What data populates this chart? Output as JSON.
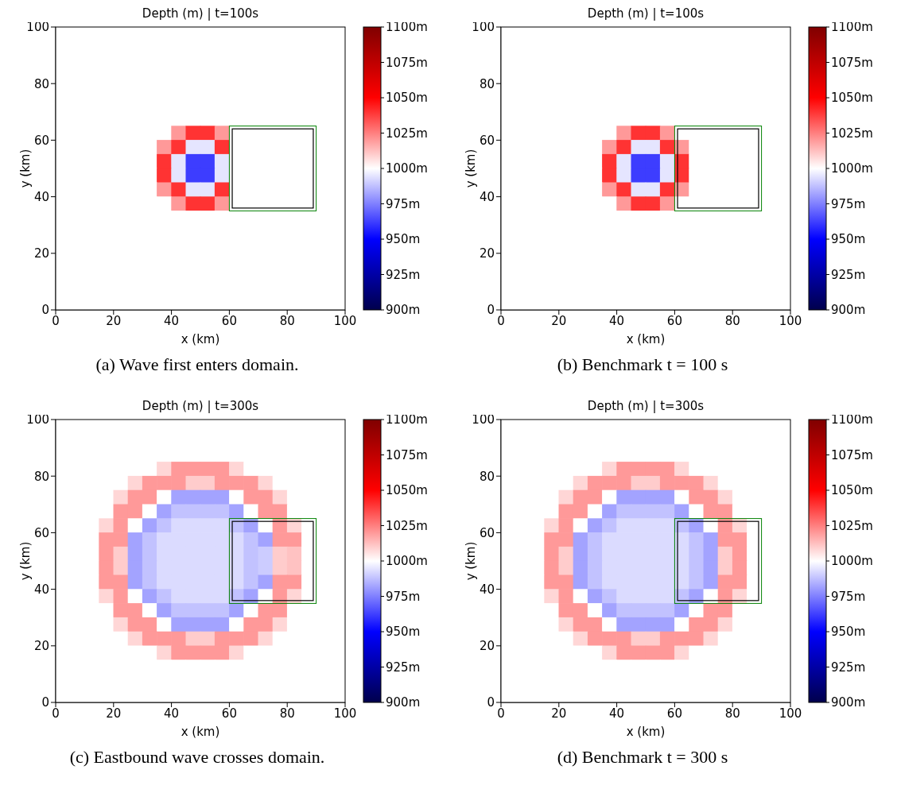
{
  "chart_data": [
    {
      "type": "heatmap",
      "title": "Depth (m) | t=100s",
      "xlabel": "x (km)",
      "ylabel": "y (km)",
      "annotations": [
        "(a) Wave first enters domain."
      ],
      "xlim": [
        0,
        100
      ],
      "ylim": [
        0,
        100
      ],
      "xticks": [
        0,
        20,
        40,
        60,
        80,
        100
      ],
      "yticks": [
        0,
        20,
        40,
        60,
        80,
        100
      ],
      "clim": [
        900,
        1100
      ],
      "cticks": [
        {
          "value": 900,
          "label": "900m"
        },
        {
          "value": 925,
          "label": "925m"
        },
        {
          "value": 950,
          "label": "950m"
        },
        {
          "value": 975,
          "label": "975m"
        },
        {
          "value": 1000,
          "label": "1000m"
        },
        {
          "value": 1025,
          "label": "1025m"
        },
        {
          "value": 1050,
          "label": "1050m"
        },
        {
          "value": 1075,
          "label": "1075m"
        },
        {
          "value": 1100,
          "label": "1100m"
        }
      ],
      "x": [
        2.5,
        7.5,
        12.5,
        17.5,
        22.5,
        27.5,
        32.5,
        37.5,
        42.5,
        47.5,
        52.5,
        57.5,
        62.5,
        67.5,
        72.5,
        77.5,
        82.5,
        87.5,
        92.5,
        97.5
      ],
      "y": [
        97.5,
        92.5,
        87.5,
        82.5,
        77.5,
        72.5,
        67.5,
        62.5,
        57.5,
        52.5,
        47.5,
        42.5,
        37.5,
        32.5,
        27.5,
        22.5,
        17.5,
        12.5,
        7.5,
        2.5
      ],
      "cells": [
        [
          1000,
          1000,
          1000,
          1000,
          1000,
          1000,
          1000,
          1000,
          1000,
          1000,
          1000,
          1000,
          1000,
          1000,
          1000,
          1000,
          1000,
          1000,
          1000,
          1000
        ],
        [
          1000,
          1000,
          1000,
          1000,
          1000,
          1000,
          1000,
          1000,
          1000,
          1000,
          1000,
          1000,
          1000,
          1000,
          1000,
          1000,
          1000,
          1000,
          1000,
          1000
        ],
        [
          1000,
          1000,
          1000,
          1000,
          1000,
          1000,
          1000,
          1000,
          1000,
          1000,
          1000,
          1000,
          1000,
          1000,
          1000,
          1000,
          1000,
          1000,
          1000,
          1000
        ],
        [
          1000,
          1000,
          1000,
          1000,
          1000,
          1000,
          1000,
          1000,
          1000,
          1000,
          1000,
          1000,
          1000,
          1000,
          1000,
          1000,
          1000,
          1000,
          1000,
          1000
        ],
        [
          1000,
          1000,
          1000,
          1000,
          1000,
          1000,
          1000,
          1000,
          1000,
          1000,
          1000,
          1000,
          1000,
          1000,
          1000,
          1000,
          1000,
          1000,
          1000,
          1000
        ],
        [
          1000,
          1000,
          1000,
          1000,
          1000,
          1000,
          1000,
          1000,
          1000,
          1000,
          1000,
          1000,
          1000,
          1000,
          1000,
          1000,
          1000,
          1000,
          1000,
          1000
        ],
        [
          1000,
          1000,
          1000,
          1000,
          1000,
          1000,
          1000,
          1000,
          1000,
          1000,
          1000,
          1000,
          1000,
          1000,
          1000,
          1000,
          1000,
          1000,
          1000,
          1000
        ],
        [
          1000,
          1000,
          1000,
          1000,
          1000,
          1000,
          1000,
          1000,
          1020,
          1040,
          1040,
          1020,
          1000,
          1000,
          1000,
          1000,
          1000,
          1000,
          1000,
          1000
        ],
        [
          1000,
          1000,
          1000,
          1000,
          1000,
          1000,
          1000,
          1020,
          1040,
          995,
          995,
          1040,
          1000,
          1000,
          1000,
          1000,
          1000,
          1000,
          1000,
          1000
        ],
        [
          1000,
          1000,
          1000,
          1000,
          1000,
          1000,
          1000,
          1040,
          995,
          962,
          962,
          995,
          1000,
          1000,
          1000,
          1000,
          1000,
          1000,
          1000,
          1000
        ],
        [
          1000,
          1000,
          1000,
          1000,
          1000,
          1000,
          1000,
          1040,
          995,
          962,
          962,
          995,
          1000,
          1000,
          1000,
          1000,
          1000,
          1000,
          1000,
          1000
        ],
        [
          1000,
          1000,
          1000,
          1000,
          1000,
          1000,
          1000,
          1020,
          1040,
          995,
          995,
          1040,
          1000,
          1000,
          1000,
          1000,
          1000,
          1000,
          1000,
          1000
        ],
        [
          1000,
          1000,
          1000,
          1000,
          1000,
          1000,
          1000,
          1000,
          1020,
          1040,
          1040,
          1020,
          1000,
          1000,
          1000,
          1000,
          1000,
          1000,
          1000,
          1000
        ],
        [
          1000,
          1000,
          1000,
          1000,
          1000,
          1000,
          1000,
          1000,
          1000,
          1000,
          1000,
          1000,
          1000,
          1000,
          1000,
          1000,
          1000,
          1000,
          1000,
          1000
        ],
        [
          1000,
          1000,
          1000,
          1000,
          1000,
          1000,
          1000,
          1000,
          1000,
          1000,
          1000,
          1000,
          1000,
          1000,
          1000,
          1000,
          1000,
          1000,
          1000,
          1000
        ],
        [
          1000,
          1000,
          1000,
          1000,
          1000,
          1000,
          1000,
          1000,
          1000,
          1000,
          1000,
          1000,
          1000,
          1000,
          1000,
          1000,
          1000,
          1000,
          1000,
          1000
        ],
        [
          1000,
          1000,
          1000,
          1000,
          1000,
          1000,
          1000,
          1000,
          1000,
          1000,
          1000,
          1000,
          1000,
          1000,
          1000,
          1000,
          1000,
          1000,
          1000,
          1000
        ],
        [
          1000,
          1000,
          1000,
          1000,
          1000,
          1000,
          1000,
          1000,
          1000,
          1000,
          1000,
          1000,
          1000,
          1000,
          1000,
          1000,
          1000,
          1000,
          1000,
          1000
        ],
        [
          1000,
          1000,
          1000,
          1000,
          1000,
          1000,
          1000,
          1000,
          1000,
          1000,
          1000,
          1000,
          1000,
          1000,
          1000,
          1000,
          1000,
          1000,
          1000,
          1000
        ],
        [
          1000,
          1000,
          1000,
          1000,
          1000,
          1000,
          1000,
          1000,
          1000,
          1000,
          1000,
          1000,
          1000,
          1000,
          1000,
          1000,
          1000,
          1000,
          1000,
          1000
        ]
      ]
    },
    {
      "type": "heatmap",
      "title": "Depth (m) | t=100s",
      "xlabel": "x (km)",
      "ylabel": "y (km)",
      "annotations": [
        "(b) Benchmark t = 100 s"
      ],
      "xlim": [
        0,
        100
      ],
      "ylim": [
        0,
        100
      ],
      "xticks": [
        0,
        20,
        40,
        60,
        80,
        100
      ],
      "yticks": [
        0,
        20,
        40,
        60,
        80,
        100
      ],
      "clim": [
        900,
        1100
      ],
      "cticks": [
        {
          "value": 900,
          "label": "900m"
        },
        {
          "value": 925,
          "label": "925m"
        },
        {
          "value": 950,
          "label": "950m"
        },
        {
          "value": 975,
          "label": "975m"
        },
        {
          "value": 1000,
          "label": "1000m"
        },
        {
          "value": 1025,
          "label": "1025m"
        },
        {
          "value": 1050,
          "label": "1050m"
        },
        {
          "value": 1075,
          "label": "1075m"
        },
        {
          "value": 1100,
          "label": "1100m"
        }
      ],
      "x": [
        2.5,
        7.5,
        12.5,
        17.5,
        22.5,
        27.5,
        32.5,
        37.5,
        42.5,
        47.5,
        52.5,
        57.5,
        62.5,
        67.5,
        72.5,
        77.5,
        82.5,
        87.5,
        92.5,
        97.5
      ],
      "y": [
        97.5,
        92.5,
        87.5,
        82.5,
        77.5,
        72.5,
        67.5,
        62.5,
        57.5,
        52.5,
        47.5,
        42.5,
        37.5,
        32.5,
        27.5,
        22.5,
        17.5,
        12.5,
        7.5,
        2.5
      ],
      "cells": [
        [
          1000,
          1000,
          1000,
          1000,
          1000,
          1000,
          1000,
          1000,
          1000,
          1000,
          1000,
          1000,
          1000,
          1000,
          1000,
          1000,
          1000,
          1000,
          1000,
          1000
        ],
        [
          1000,
          1000,
          1000,
          1000,
          1000,
          1000,
          1000,
          1000,
          1000,
          1000,
          1000,
          1000,
          1000,
          1000,
          1000,
          1000,
          1000,
          1000,
          1000,
          1000
        ],
        [
          1000,
          1000,
          1000,
          1000,
          1000,
          1000,
          1000,
          1000,
          1000,
          1000,
          1000,
          1000,
          1000,
          1000,
          1000,
          1000,
          1000,
          1000,
          1000,
          1000
        ],
        [
          1000,
          1000,
          1000,
          1000,
          1000,
          1000,
          1000,
          1000,
          1000,
          1000,
          1000,
          1000,
          1000,
          1000,
          1000,
          1000,
          1000,
          1000,
          1000,
          1000
        ],
        [
          1000,
          1000,
          1000,
          1000,
          1000,
          1000,
          1000,
          1000,
          1000,
          1000,
          1000,
          1000,
          1000,
          1000,
          1000,
          1000,
          1000,
          1000,
          1000,
          1000
        ],
        [
          1000,
          1000,
          1000,
          1000,
          1000,
          1000,
          1000,
          1000,
          1000,
          1000,
          1000,
          1000,
          1000,
          1000,
          1000,
          1000,
          1000,
          1000,
          1000,
          1000
        ],
        [
          1000,
          1000,
          1000,
          1000,
          1000,
          1000,
          1000,
          1000,
          1000,
          1000,
          1000,
          1000,
          1000,
          1000,
          1000,
          1000,
          1000,
          1000,
          1000,
          1000
        ],
        [
          1000,
          1000,
          1000,
          1000,
          1000,
          1000,
          1000,
          1000,
          1020,
          1040,
          1040,
          1020,
          1000,
          1000,
          1000,
          1000,
          1000,
          1000,
          1000,
          1000
        ],
        [
          1000,
          1000,
          1000,
          1000,
          1000,
          1000,
          1000,
          1020,
          1040,
          995,
          995,
          1040,
          1020,
          1000,
          1000,
          1000,
          1000,
          1000,
          1000,
          1000
        ],
        [
          1000,
          1000,
          1000,
          1000,
          1000,
          1000,
          1000,
          1040,
          995,
          962,
          962,
          995,
          1040,
          1000,
          1000,
          1000,
          1000,
          1000,
          1000,
          1000
        ],
        [
          1000,
          1000,
          1000,
          1000,
          1000,
          1000,
          1000,
          1040,
          995,
          962,
          962,
          995,
          1040,
          1000,
          1000,
          1000,
          1000,
          1000,
          1000,
          1000
        ],
        [
          1000,
          1000,
          1000,
          1000,
          1000,
          1000,
          1000,
          1020,
          1040,
          995,
          995,
          1040,
          1020,
          1000,
          1000,
          1000,
          1000,
          1000,
          1000,
          1000
        ],
        [
          1000,
          1000,
          1000,
          1000,
          1000,
          1000,
          1000,
          1000,
          1020,
          1040,
          1040,
          1020,
          1000,
          1000,
          1000,
          1000,
          1000,
          1000,
          1000,
          1000
        ],
        [
          1000,
          1000,
          1000,
          1000,
          1000,
          1000,
          1000,
          1000,
          1000,
          1000,
          1000,
          1000,
          1000,
          1000,
          1000,
          1000,
          1000,
          1000,
          1000,
          1000
        ],
        [
          1000,
          1000,
          1000,
          1000,
          1000,
          1000,
          1000,
          1000,
          1000,
          1000,
          1000,
          1000,
          1000,
          1000,
          1000,
          1000,
          1000,
          1000,
          1000,
          1000
        ],
        [
          1000,
          1000,
          1000,
          1000,
          1000,
          1000,
          1000,
          1000,
          1000,
          1000,
          1000,
          1000,
          1000,
          1000,
          1000,
          1000,
          1000,
          1000,
          1000,
          1000
        ],
        [
          1000,
          1000,
          1000,
          1000,
          1000,
          1000,
          1000,
          1000,
          1000,
          1000,
          1000,
          1000,
          1000,
          1000,
          1000,
          1000,
          1000,
          1000,
          1000,
          1000
        ],
        [
          1000,
          1000,
          1000,
          1000,
          1000,
          1000,
          1000,
          1000,
          1000,
          1000,
          1000,
          1000,
          1000,
          1000,
          1000,
          1000,
          1000,
          1000,
          1000,
          1000
        ],
        [
          1000,
          1000,
          1000,
          1000,
          1000,
          1000,
          1000,
          1000,
          1000,
          1000,
          1000,
          1000,
          1000,
          1000,
          1000,
          1000,
          1000,
          1000,
          1000,
          1000
        ],
        [
          1000,
          1000,
          1000,
          1000,
          1000,
          1000,
          1000,
          1000,
          1000,
          1000,
          1000,
          1000,
          1000,
          1000,
          1000,
          1000,
          1000,
          1000,
          1000,
          1000
        ]
      ]
    },
    {
      "type": "heatmap",
      "title": "Depth (m) | t=300s",
      "xlabel": "x (km)",
      "ylabel": "y (km)",
      "annotations": [
        "(c) Eastbound wave crosses domain."
      ],
      "xlim": [
        0,
        100
      ],
      "ylim": [
        0,
        100
      ],
      "xticks": [
        0,
        20,
        40,
        60,
        80,
        100
      ],
      "yticks": [
        0,
        20,
        40,
        60,
        80,
        100
      ],
      "clim": [
        900,
        1100
      ],
      "cticks": [
        {
          "value": 900,
          "label": "900m"
        },
        {
          "value": 925,
          "label": "925m"
        },
        {
          "value": 950,
          "label": "950m"
        },
        {
          "value": 975,
          "label": "975m"
        },
        {
          "value": 1000,
          "label": "1000m"
        },
        {
          "value": 1025,
          "label": "1025m"
        },
        {
          "value": 1050,
          "label": "1050m"
        },
        {
          "value": 1075,
          "label": "1075m"
        },
        {
          "value": 1100,
          "label": "1100m"
        }
      ],
      "x": [
        2.5,
        7.5,
        12.5,
        17.5,
        22.5,
        27.5,
        32.5,
        37.5,
        42.5,
        47.5,
        52.5,
        57.5,
        62.5,
        67.5,
        72.5,
        77.5,
        82.5,
        87.5,
        92.5,
        97.5
      ],
      "y": [
        97.5,
        92.5,
        87.5,
        82.5,
        77.5,
        72.5,
        67.5,
        62.5,
        57.5,
        52.5,
        47.5,
        42.5,
        37.5,
        32.5,
        27.5,
        22.5,
        17.5,
        12.5,
        7.5,
        2.5
      ],
      "cells": [
        [
          1000,
          1000,
          1000,
          1000,
          1000,
          1000,
          1000,
          1000,
          1000,
          1000,
          1000,
          1000,
          1000,
          1000,
          1000,
          1000,
          1000,
          1000,
          1000,
          1000
        ],
        [
          1000,
          1000,
          1000,
          1000,
          1000,
          1000,
          1000,
          1000,
          1000,
          1000,
          1000,
          1000,
          1000,
          1000,
          1000,
          1000,
          1000,
          1000,
          1000,
          1000
        ],
        [
          1000,
          1000,
          1000,
          1000,
          1000,
          1000,
          1000,
          1000,
          1000,
          1000,
          1000,
          1000,
          1000,
          1000,
          1000,
          1000,
          1000,
          1000,
          1000,
          1000
        ],
        [
          1000,
          1000,
          1000,
          1000,
          1000,
          1000,
          1000,
          1008,
          1020,
          1020,
          1020,
          1020,
          1008,
          1000,
          1000,
          1000,
          1000,
          1000,
          1000,
          1000
        ],
        [
          1000,
          1000,
          1000,
          1000,
          1000,
          1008,
          1020,
          1020,
          1020,
          1010,
          1010,
          1020,
          1020,
          1020,
          1008,
          1000,
          1000,
          1000,
          1000,
          1000
        ],
        [
          1000,
          1000,
          1000,
          1000,
          1008,
          1020,
          1020,
          1000,
          982,
          982,
          982,
          982,
          1000,
          1020,
          1020,
          1008,
          1000,
          1000,
          1000,
          1000
        ],
        [
          1000,
          1000,
          1000,
          1000,
          1020,
          1020,
          1000,
          982,
          988,
          988,
          988,
          988,
          982,
          1000,
          1020,
          1020,
          1000,
          1000,
          1000,
          1000
        ],
        [
          1000,
          1000,
          1000,
          1008,
          1020,
          1000,
          982,
          988,
          993,
          993,
          993,
          993,
          988,
          982,
          1000,
          1020,
          1008,
          1000,
          1000,
          1000
        ],
        [
          1000,
          1000,
          1000,
          1020,
          1020,
          982,
          988,
          993,
          993,
          993,
          993,
          993,
          993,
          988,
          982,
          1020,
          1020,
          1000,
          1000,
          1000
        ],
        [
          1000,
          1000,
          1000,
          1020,
          1010,
          982,
          988,
          993,
          993,
          993,
          993,
          993,
          993,
          988,
          990,
          1010,
          1012,
          1000,
          1000,
          1000
        ],
        [
          1000,
          1000,
          1000,
          1020,
          1010,
          982,
          988,
          993,
          993,
          993,
          993,
          993,
          993,
          988,
          990,
          1010,
          1012,
          1000,
          1000,
          1000
        ],
        [
          1000,
          1000,
          1000,
          1020,
          1020,
          982,
          988,
          993,
          993,
          993,
          993,
          993,
          993,
          988,
          982,
          1020,
          1020,
          1000,
          1000,
          1000
        ],
        [
          1000,
          1000,
          1000,
          1008,
          1020,
          1000,
          982,
          988,
          993,
          993,
          993,
          993,
          988,
          982,
          1000,
          1020,
          1008,
          1000,
          1000,
          1000
        ],
        [
          1000,
          1000,
          1000,
          1000,
          1020,
          1020,
          1000,
          982,
          988,
          988,
          988,
          988,
          982,
          1000,
          1020,
          1020,
          1000,
          1000,
          1000,
          1000
        ],
        [
          1000,
          1000,
          1000,
          1000,
          1008,
          1020,
          1020,
          1000,
          982,
          982,
          982,
          982,
          1000,
          1020,
          1020,
          1008,
          1000,
          1000,
          1000,
          1000
        ],
        [
          1000,
          1000,
          1000,
          1000,
          1000,
          1008,
          1020,
          1020,
          1020,
          1010,
          1010,
          1020,
          1020,
          1020,
          1008,
          1000,
          1000,
          1000,
          1000,
          1000
        ],
        [
          1000,
          1000,
          1000,
          1000,
          1000,
          1000,
          1000,
          1008,
          1020,
          1020,
          1020,
          1020,
          1008,
          1000,
          1000,
          1000,
          1000,
          1000,
          1000,
          1000
        ],
        [
          1000,
          1000,
          1000,
          1000,
          1000,
          1000,
          1000,
          1000,
          1000,
          1000,
          1000,
          1000,
          1000,
          1000,
          1000,
          1000,
          1000,
          1000,
          1000,
          1000
        ],
        [
          1000,
          1000,
          1000,
          1000,
          1000,
          1000,
          1000,
          1000,
          1000,
          1000,
          1000,
          1000,
          1000,
          1000,
          1000,
          1000,
          1000,
          1000,
          1000,
          1000
        ],
        [
          1000,
          1000,
          1000,
          1000,
          1000,
          1000,
          1000,
          1000,
          1000,
          1000,
          1000,
          1000,
          1000,
          1000,
          1000,
          1000,
          1000,
          1000,
          1000,
          1000
        ]
      ]
    },
    {
      "type": "heatmap",
      "title": "Depth (m) | t=300s",
      "xlabel": "x (km)",
      "ylabel": "y (km)",
      "annotations": [
        "(d) Benchmark t = 300 s"
      ],
      "xlim": [
        0,
        100
      ],
      "ylim": [
        0,
        100
      ],
      "xticks": [
        0,
        20,
        40,
        60,
        80,
        100
      ],
      "yticks": [
        0,
        20,
        40,
        60,
        80,
        100
      ],
      "clim": [
        900,
        1100
      ],
      "cticks": [
        {
          "value": 900,
          "label": "900m"
        },
        {
          "value": 925,
          "label": "925m"
        },
        {
          "value": 950,
          "label": "950m"
        },
        {
          "value": 975,
          "label": "975m"
        },
        {
          "value": 1000,
          "label": "1000m"
        },
        {
          "value": 1025,
          "label": "1025m"
        },
        {
          "value": 1050,
          "label": "1050m"
        },
        {
          "value": 1075,
          "label": "1075m"
        },
        {
          "value": 1100,
          "label": "1100m"
        }
      ],
      "x": [
        2.5,
        7.5,
        12.5,
        17.5,
        22.5,
        27.5,
        32.5,
        37.5,
        42.5,
        47.5,
        52.5,
        57.5,
        62.5,
        67.5,
        72.5,
        77.5,
        82.5,
        87.5,
        92.5,
        97.5
      ],
      "y": [
        97.5,
        92.5,
        87.5,
        82.5,
        77.5,
        72.5,
        67.5,
        62.5,
        57.5,
        52.5,
        47.5,
        42.5,
        37.5,
        32.5,
        27.5,
        22.5,
        17.5,
        12.5,
        7.5,
        2.5
      ],
      "cells": [
        [
          1000,
          1000,
          1000,
          1000,
          1000,
          1000,
          1000,
          1000,
          1000,
          1000,
          1000,
          1000,
          1000,
          1000,
          1000,
          1000,
          1000,
          1000,
          1000,
          1000
        ],
        [
          1000,
          1000,
          1000,
          1000,
          1000,
          1000,
          1000,
          1000,
          1000,
          1000,
          1000,
          1000,
          1000,
          1000,
          1000,
          1000,
          1000,
          1000,
          1000,
          1000
        ],
        [
          1000,
          1000,
          1000,
          1000,
          1000,
          1000,
          1000,
          1000,
          1000,
          1000,
          1000,
          1000,
          1000,
          1000,
          1000,
          1000,
          1000,
          1000,
          1000,
          1000
        ],
        [
          1000,
          1000,
          1000,
          1000,
          1000,
          1000,
          1000,
          1008,
          1020,
          1020,
          1020,
          1020,
          1008,
          1000,
          1000,
          1000,
          1000,
          1000,
          1000,
          1000
        ],
        [
          1000,
          1000,
          1000,
          1000,
          1000,
          1008,
          1020,
          1020,
          1020,
          1010,
          1010,
          1020,
          1020,
          1020,
          1008,
          1000,
          1000,
          1000,
          1000,
          1000
        ],
        [
          1000,
          1000,
          1000,
          1000,
          1008,
          1020,
          1020,
          1000,
          982,
          982,
          982,
          982,
          1000,
          1020,
          1020,
          1008,
          1000,
          1000,
          1000,
          1000
        ],
        [
          1000,
          1000,
          1000,
          1000,
          1020,
          1020,
          1000,
          982,
          988,
          988,
          988,
          988,
          982,
          1000,
          1020,
          1020,
          1000,
          1000,
          1000,
          1000
        ],
        [
          1000,
          1000,
          1000,
          1008,
          1020,
          1000,
          982,
          988,
          993,
          993,
          993,
          993,
          988,
          982,
          1000,
          1020,
          1008,
          1000,
          1000,
          1000
        ],
        [
          1000,
          1000,
          1000,
          1020,
          1020,
          982,
          988,
          993,
          993,
          993,
          993,
          993,
          993,
          988,
          982,
          1020,
          1020,
          1000,
          1000,
          1000
        ],
        [
          1000,
          1000,
          1000,
          1020,
          1010,
          982,
          988,
          993,
          993,
          993,
          993,
          993,
          993,
          988,
          982,
          1010,
          1020,
          1000,
          1000,
          1000
        ],
        [
          1000,
          1000,
          1000,
          1020,
          1010,
          982,
          988,
          993,
          993,
          993,
          993,
          993,
          993,
          988,
          982,
          1010,
          1020,
          1000,
          1000,
          1000
        ],
        [
          1000,
          1000,
          1000,
          1020,
          1020,
          982,
          988,
          993,
          993,
          993,
          993,
          993,
          993,
          988,
          982,
          1020,
          1020,
          1000,
          1000,
          1000
        ],
        [
          1000,
          1000,
          1000,
          1008,
          1020,
          1000,
          982,
          988,
          993,
          993,
          993,
          993,
          988,
          982,
          1000,
          1020,
          1008,
          1000,
          1000,
          1000
        ],
        [
          1000,
          1000,
          1000,
          1000,
          1020,
          1020,
          1000,
          982,
          988,
          988,
          988,
          988,
          982,
          1000,
          1020,
          1020,
          1000,
          1000,
          1000,
          1000
        ],
        [
          1000,
          1000,
          1000,
          1000,
          1008,
          1020,
          1020,
          1000,
          982,
          982,
          982,
          982,
          1000,
          1020,
          1020,
          1008,
          1000,
          1000,
          1000,
          1000
        ],
        [
          1000,
          1000,
          1000,
          1000,
          1000,
          1008,
          1020,
          1020,
          1020,
          1010,
          1010,
          1020,
          1020,
          1020,
          1008,
          1000,
          1000,
          1000,
          1000,
          1000
        ],
        [
          1000,
          1000,
          1000,
          1000,
          1000,
          1000,
          1000,
          1008,
          1020,
          1020,
          1020,
          1020,
          1008,
          1000,
          1000,
          1000,
          1000,
          1000,
          1000,
          1000
        ],
        [
          1000,
          1000,
          1000,
          1000,
          1000,
          1000,
          1000,
          1000,
          1000,
          1000,
          1000,
          1000,
          1000,
          1000,
          1000,
          1000,
          1000,
          1000,
          1000,
          1000
        ],
        [
          1000,
          1000,
          1000,
          1000,
          1000,
          1000,
          1000,
          1000,
          1000,
          1000,
          1000,
          1000,
          1000,
          1000,
          1000,
          1000,
          1000,
          1000,
          1000,
          1000
        ],
        [
          1000,
          1000,
          1000,
          1000,
          1000,
          1000,
          1000,
          1000,
          1000,
          1000,
          1000,
          1000,
          1000,
          1000,
          1000,
          1000,
          1000,
          1000,
          1000,
          1000
        ]
      ]
    }
  ]
}
